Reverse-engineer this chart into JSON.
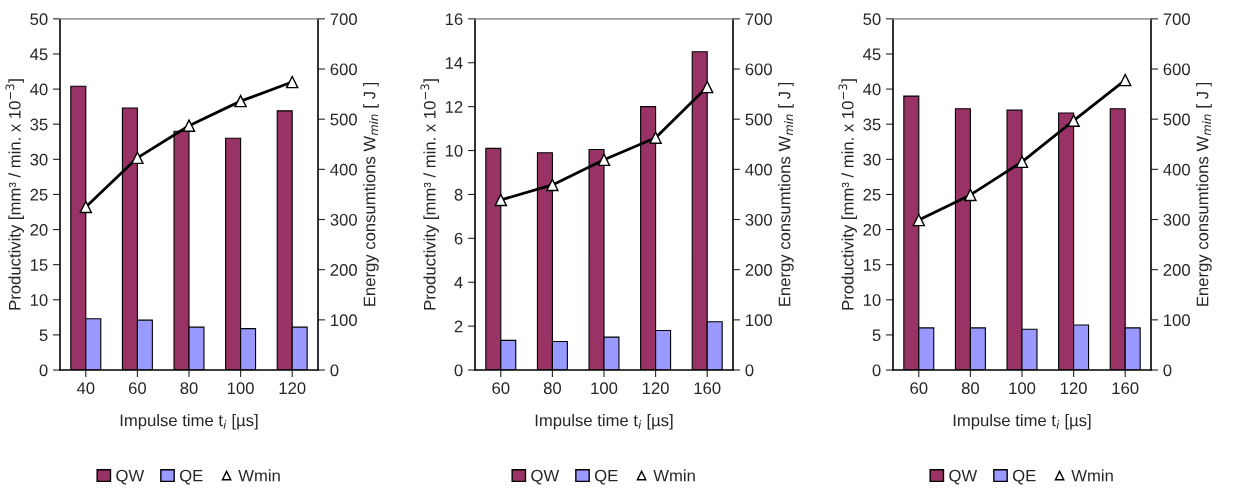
{
  "chart_data": [
    {
      "type": "bar",
      "categories": [
        "40",
        "60",
        "80",
        "100",
        "120"
      ],
      "xlabel": "Impulse time t$_{i}$ [µs]",
      "ylabel": "Productivity [mm³ / min. x 10$^{−3}$]",
      "y2label": "Energy consumtions W$_{min}$ [ J ]",
      "ylim": [
        0,
        50
      ],
      "yticks": [
        0,
        5,
        10,
        15,
        20,
        25,
        30,
        35,
        40,
        45,
        50
      ],
      "y2lim": [
        0,
        700
      ],
      "y2ticks": [
        0,
        100,
        200,
        300,
        400,
        500,
        600,
        700
      ],
      "legend": "bottom",
      "grid": false,
      "series": [
        {
          "name": "QW",
          "color": "#993366",
          "values": [
            40.4,
            37.3,
            34,
            33,
            36.9
          ]
        },
        {
          "name": "QE",
          "color": "#9999ff",
          "values": [
            7.3,
            7.1,
            6.1,
            5.9,
            6.1
          ]
        },
        {
          "name": "Wmin",
          "type": "line",
          "axis": "y2",
          "color": "#000000",
          "marker": "triangle",
          "values": [
            325,
            423,
            487,
            536,
            574
          ]
        }
      ]
    },
    {
      "type": "bar",
      "categories": [
        "60",
        "80",
        "100",
        "120",
        "160"
      ],
      "xlabel": "Impulse time t$_{i}$ [µs]",
      "ylabel": "Productivity [mm³ / min. x 10$^{−3}$]",
      "y2label": "Energy consumtions W$_{min}$ [ J ]",
      "ylim": [
        0,
        16
      ],
      "yticks": [
        0,
        2,
        4,
        6,
        8,
        10,
        12,
        14,
        16
      ],
      "y2lim": [
        0,
        700
      ],
      "y2ticks": [
        0,
        100,
        200,
        300,
        400,
        500,
        600,
        700
      ],
      "legend": "bottom",
      "grid": false,
      "series": [
        {
          "name": "QW",
          "color": "#993366",
          "values": [
            10.1,
            9.9,
            10.05,
            12,
            14.5
          ]
        },
        {
          "name": "QE",
          "color": "#9999ff",
          "values": [
            1.35,
            1.3,
            1.5,
            1.8,
            2.2
          ]
        },
        {
          "name": "Wmin",
          "type": "line",
          "axis": "y2",
          "color": "#000000",
          "marker": "triangle",
          "values": [
            339,
            369,
            419,
            463,
            564
          ]
        }
      ]
    },
    {
      "type": "bar",
      "categories": [
        "60",
        "80",
        "100",
        "120",
        "160"
      ],
      "xlabel": "Impulse time t$_{i}$ [µs]",
      "ylabel": "Productivity [mm³ / min. x 10$^{−3}$]",
      "y2label": "Energy consumtions W$_{min}$ [ J ]",
      "ylim": [
        0,
        50
      ],
      "yticks": [
        0,
        5,
        10,
        15,
        20,
        25,
        30,
        35,
        40,
        45,
        50
      ],
      "y2lim": [
        0,
        700
      ],
      "y2ticks": [
        0,
        100,
        200,
        300,
        400,
        500,
        600,
        700
      ],
      "legend": "bottom",
      "grid": false,
      "series": [
        {
          "name": "QW",
          "color": "#993366",
          "values": [
            39,
            37.2,
            37,
            36.6,
            37.2
          ]
        },
        {
          "name": "QE",
          "color": "#9999ff",
          "values": [
            6,
            6,
            5.8,
            6.4,
            6
          ]
        },
        {
          "name": "Wmin",
          "type": "line",
          "axis": "y2",
          "color": "#000000",
          "marker": "triangle",
          "values": [
            299,
            349,
            415,
            497,
            578
          ]
        }
      ]
    }
  ]
}
